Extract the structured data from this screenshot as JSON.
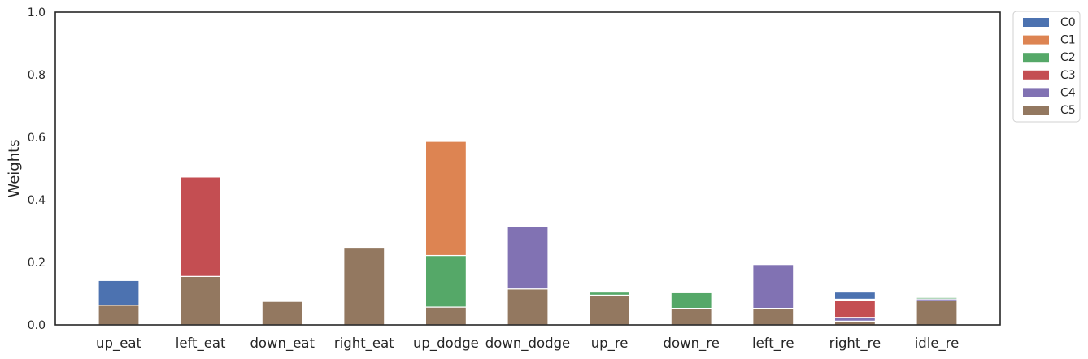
{
  "chart_data": {
    "type": "bar",
    "stacked": true,
    "categories": [
      "up_eat",
      "left_eat",
      "down_eat",
      "right_eat",
      "up_dodge",
      "down_dodge",
      "up_re",
      "down_re",
      "left_re",
      "right_re",
      "idle_re"
    ],
    "series": [
      {
        "name": "C0",
        "color": "#4c72b0",
        "values": [
          0.079,
          0,
          0,
          0,
          0,
          0,
          0,
          0,
          0,
          0.023,
          0
        ]
      },
      {
        "name": "C1",
        "color": "#dd8452",
        "values": [
          0,
          0,
          0,
          0,
          0.365,
          0,
          0,
          0,
          0,
          0,
          0.002
        ]
      },
      {
        "name": "C2",
        "color": "#55a868",
        "values": [
          0,
          0,
          0,
          0,
          0.165,
          0,
          0.01,
          0.05,
          0,
          0.003,
          0.005
        ]
      },
      {
        "name": "C3",
        "color": "#c44e52",
        "values": [
          0,
          0.318,
          0,
          0,
          0,
          0,
          0,
          0,
          0,
          0.055,
          0
        ]
      },
      {
        "name": "C4",
        "color": "#8172b3",
        "values": [
          0,
          0,
          0,
          0,
          0,
          0.2,
          0,
          0,
          0.14,
          0.012,
          0.006
        ]
      },
      {
        "name": "C5",
        "color": "#937860",
        "values": [
          0.063,
          0.155,
          0.075,
          0.248,
          0.057,
          0.115,
          0.095,
          0.053,
          0.053,
          0.012,
          0.077
        ]
      }
    ],
    "ylabel": "Weights",
    "xlabel": "",
    "ylim": [
      0,
      1.0
    ],
    "yticks": [
      "0.0",
      "0.2",
      "0.4",
      "0.6",
      "0.8",
      "1.0"
    ],
    "grid": false,
    "legend_position": "outside-top-right"
  }
}
